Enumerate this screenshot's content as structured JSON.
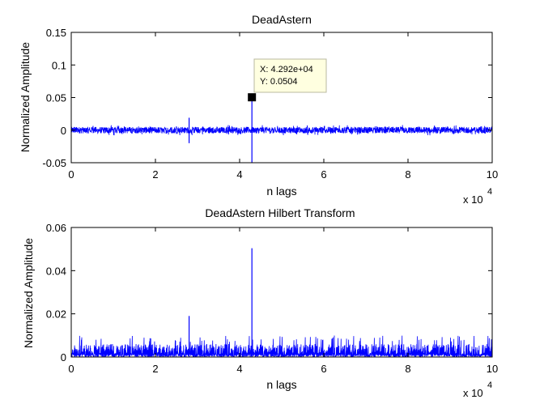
{
  "chart_data": [
    {
      "type": "line",
      "title": "DeadAstern",
      "xlabel": "n lags",
      "ylabel": "Normalized Amplitude",
      "x_multiplier_label": "x 10",
      "x_multiplier_exp": "4",
      "xlim": [
        0,
        100000
      ],
      "ylim": [
        -0.05,
        0.15
      ],
      "xticks": [
        0,
        20000,
        40000,
        60000,
        80000,
        100000
      ],
      "xtick_labels": [
        "0",
        "2",
        "4",
        "6",
        "8",
        "10"
      ],
      "yticks": [
        -0.05,
        0,
        0.05,
        0.1,
        0.15
      ],
      "ytick_labels": [
        "-0.05",
        "0",
        "0.05",
        "0.1",
        "0.15"
      ],
      "grid": false,
      "series_color": "#0000ff",
      "noise_level": 0.005,
      "noise_peak": 0.008,
      "spikes": [
        {
          "x": 28000,
          "y": 0.019,
          "y_min": -0.02
        },
        {
          "x": 42920,
          "y": 0.0504,
          "y_min": -0.05
        }
      ],
      "datatip": {
        "x": 42920,
        "y": 0.0504,
        "x_text": "X: 4.292e+04",
        "y_text": "Y: 0.0504"
      }
    },
    {
      "type": "line",
      "title": "DeadAstern Hilbert Transform",
      "xlabel": "n lags",
      "ylabel": "Normalized Amplitude",
      "x_multiplier_label": "x 10",
      "x_multiplier_exp": "4",
      "xlim": [
        0,
        100000
      ],
      "ylim": [
        0,
        0.06
      ],
      "xticks": [
        0,
        20000,
        40000,
        60000,
        80000,
        100000
      ],
      "xtick_labels": [
        "0",
        "2",
        "4",
        "6",
        "8",
        "10"
      ],
      "yticks": [
        0,
        0.02,
        0.04,
        0.06
      ],
      "ytick_labels": [
        "0",
        "0.02",
        "0.04",
        "0.06"
      ],
      "grid": false,
      "series_color": "#0000ff",
      "noise_level": 0.006,
      "noise_peak": 0.01,
      "spikes": [
        {
          "x": 28000,
          "y": 0.019
        },
        {
          "x": 42920,
          "y": 0.0504
        }
      ]
    }
  ]
}
